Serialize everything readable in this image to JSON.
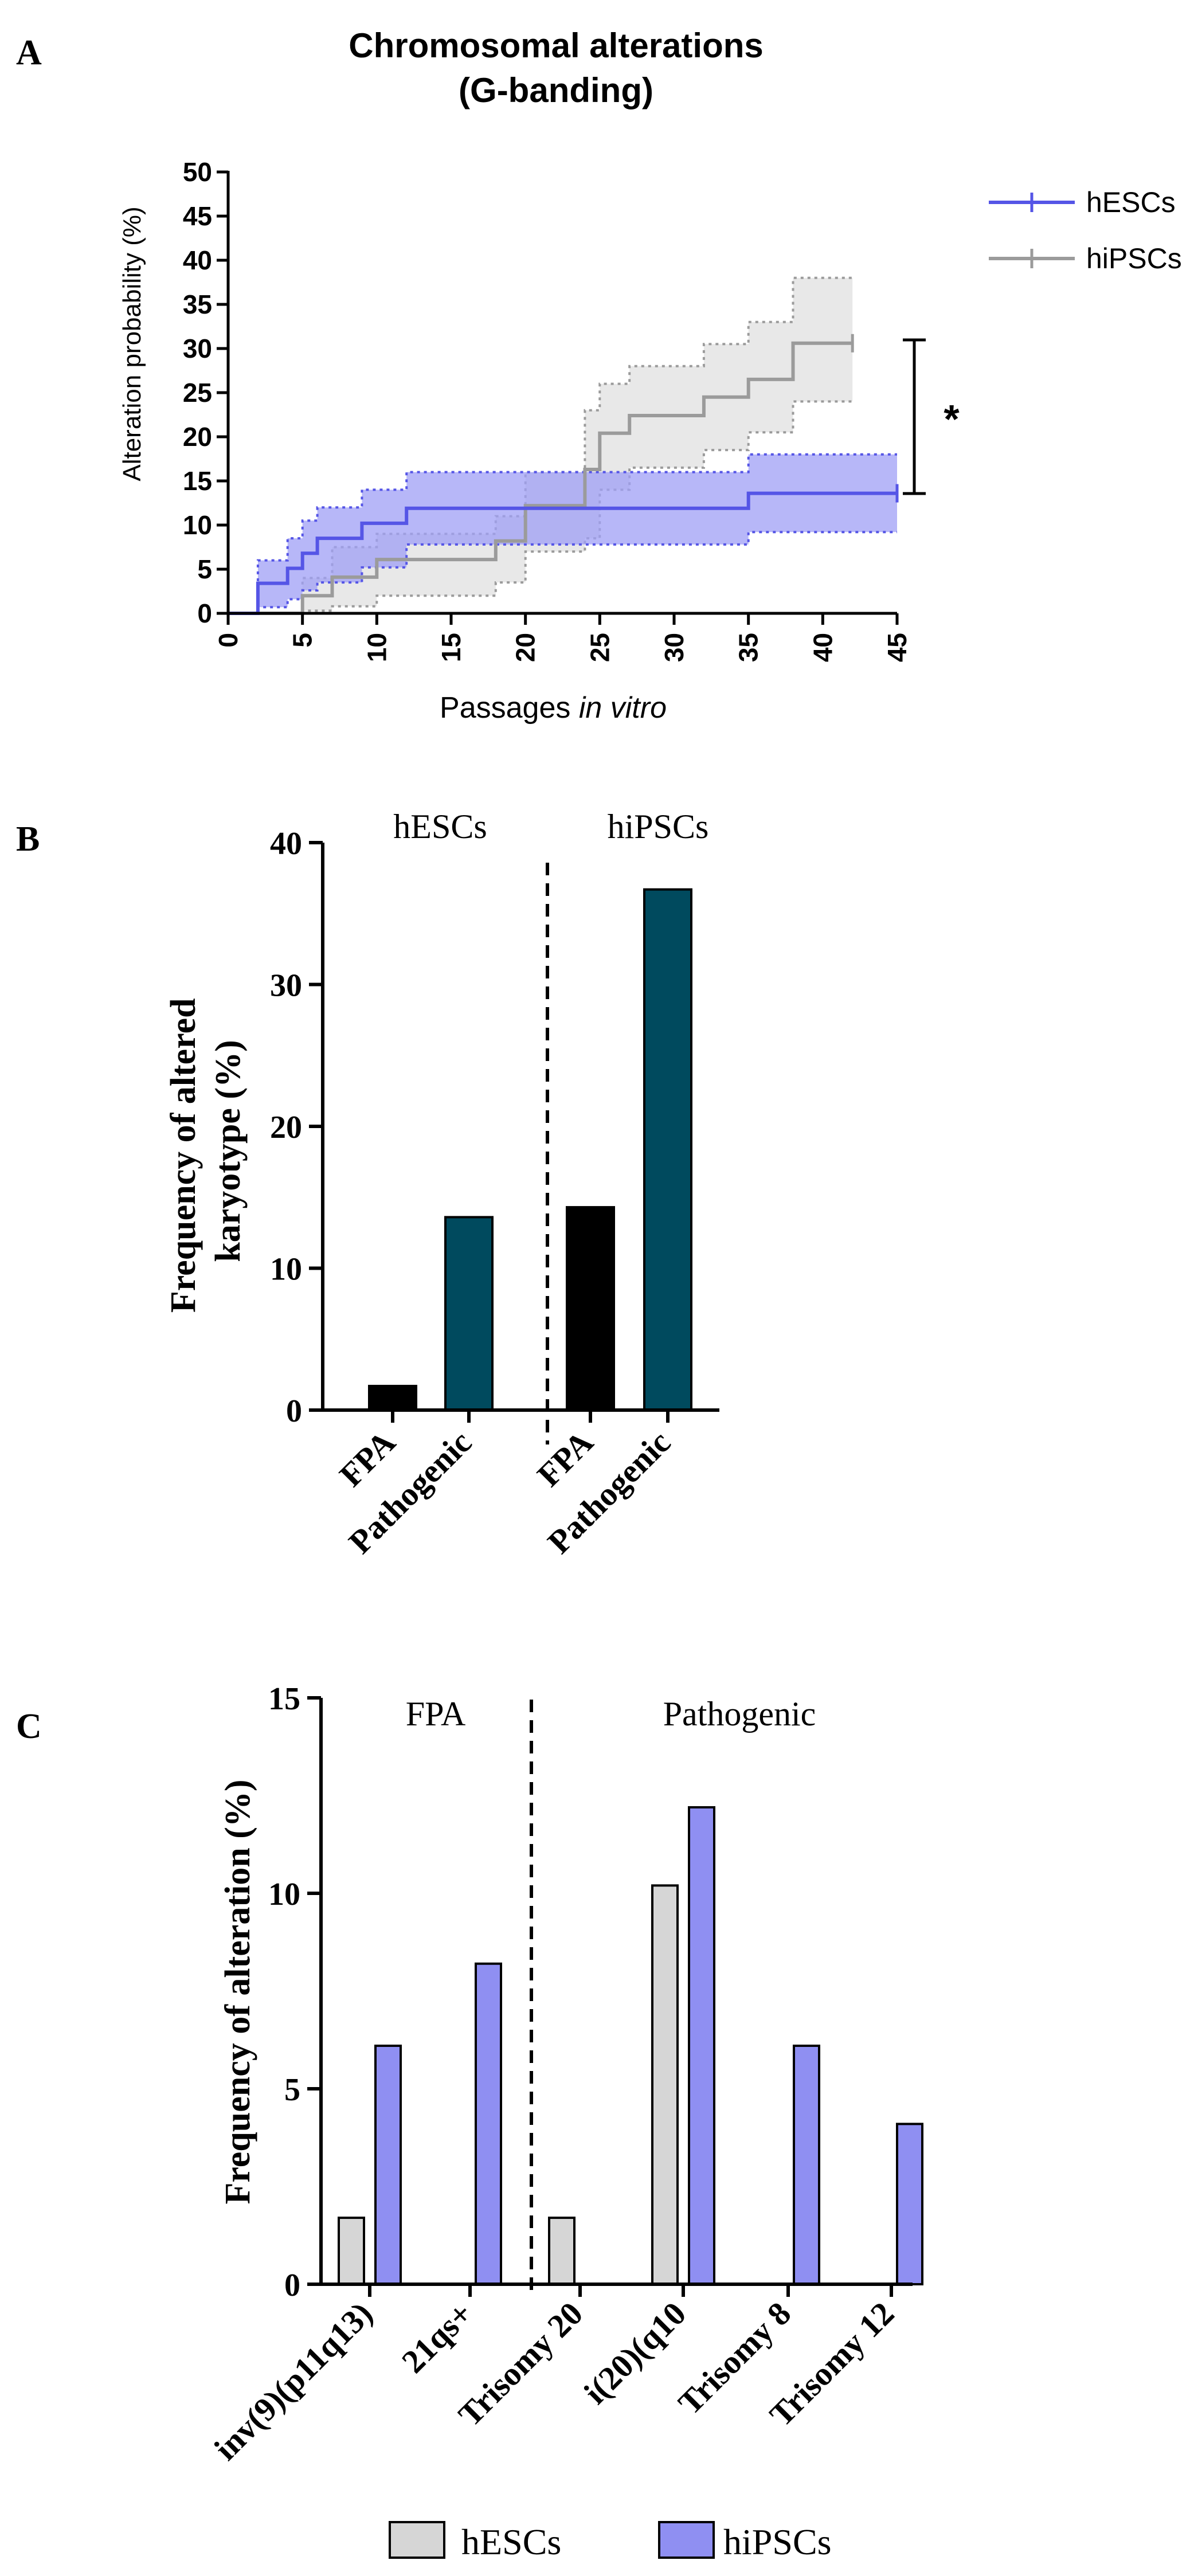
{
  "colors": {
    "hesc_blue": "#5555e6",
    "hesc_fill": "#9f9ff5",
    "hipsc_gray": "#9b9b9b",
    "hipsc_fill": "#e4e4e4",
    "bar_black": "#000000",
    "bar_teal": "#004a5e",
    "bar_lightgray": "#d6d6d6",
    "bar_purple": "#8f8ff2"
  },
  "chart_data": [
    {
      "id": "A",
      "type": "line",
      "panel_label": "A",
      "title": "Chromosomal alterations",
      "subtitle": "(G-banding)",
      "xlabel_prefix": "Passages ",
      "xlabel_italic": "in vitro",
      "ylabel": "Alteration probability (%)",
      "xlim": [
        0,
        45
      ],
      "ylim": [
        0,
        50
      ],
      "xticks": [
        "0",
        "5",
        "10",
        "15",
        "20",
        "25",
        "30",
        "35",
        "40",
        "45"
      ],
      "yticks": [
        "0",
        "5",
        "10",
        "15",
        "20",
        "25",
        "30",
        "35",
        "40",
        "45",
        "50"
      ],
      "significance": "*",
      "series": [
        {
          "name": "hESCs",
          "steps": [
            [
              0,
              0
            ],
            [
              2,
              3.4
            ],
            [
              4,
              5.1
            ],
            [
              5,
              6.8
            ],
            [
              6,
              8.5
            ],
            [
              9,
              10.2
            ],
            [
              12,
              11.9
            ],
            [
              35,
              13.6
            ],
            [
              45,
              13.6
            ]
          ],
          "lower": [
            [
              0,
              0
            ],
            [
              2,
              0.7
            ],
            [
              4,
              1.6
            ],
            [
              5,
              2.6
            ],
            [
              6,
              3.5
            ],
            [
              9,
              5.2
            ],
            [
              12,
              7.8
            ],
            [
              35,
              9.2
            ],
            [
              45,
              9.2
            ]
          ],
          "upper": [
            [
              0,
              0
            ],
            [
              2,
              6.0
            ],
            [
              4,
              8.5
            ],
            [
              5,
              10.5
            ],
            [
              6,
              12.0
            ],
            [
              9,
              14.0
            ],
            [
              12,
              16.0
            ],
            [
              35,
              18.0
            ],
            [
              45,
              18.0
            ]
          ]
        },
        {
          "name": "hiPSCs",
          "steps": [
            [
              0,
              0
            ],
            [
              5,
              2.0
            ],
            [
              7,
              4.1
            ],
            [
              10,
              6.1
            ],
            [
              18,
              8.2
            ],
            [
              20,
              12.2
            ],
            [
              24,
              16.3
            ],
            [
              25,
              20.4
            ],
            [
              27,
              22.4
            ],
            [
              32,
              24.5
            ],
            [
              35,
              26.5
            ],
            [
              38,
              30.6
            ],
            [
              42,
              30.6
            ]
          ],
          "lower": [
            [
              0,
              0
            ],
            [
              5,
              0.3
            ],
            [
              7,
              0.8
            ],
            [
              10,
              2.0
            ],
            [
              18,
              3.5
            ],
            [
              20,
              7.0
            ],
            [
              24,
              8.5
            ],
            [
              25,
              14.0
            ],
            [
              27,
              16.5
            ],
            [
              32,
              18.5
            ],
            [
              35,
              20.5
            ],
            [
              38,
              24.0
            ],
            [
              42,
              24.0
            ]
          ],
          "upper": [
            [
              0,
              0
            ],
            [
              5,
              4.0
            ],
            [
              7,
              7.5
            ],
            [
              10,
              9.0
            ],
            [
              18,
              11.0
            ],
            [
              20,
              16.0
            ],
            [
              24,
              23.0
            ],
            [
              25,
              26.0
            ],
            [
              27,
              28.0
            ],
            [
              32,
              30.5
            ],
            [
              35,
              33.0
            ],
            [
              38,
              38.0
            ],
            [
              42,
              38.0
            ]
          ]
        }
      ]
    },
    {
      "id": "B",
      "type": "bar",
      "panel_label": "B",
      "ylabel_line1": "Frequency of altered",
      "ylabel_line2": "karyotype (%)",
      "ylim": [
        0,
        40
      ],
      "yticks": [
        "0",
        "10",
        "20",
        "30",
        "40"
      ],
      "groups": [
        "hESCs",
        "hiPSCs"
      ],
      "categories": [
        "FPA",
        "Pathogenic",
        "FPA",
        "Pathogenic"
      ],
      "values": [
        1.7,
        13.6,
        14.3,
        36.7
      ]
    },
    {
      "id": "C",
      "type": "bar",
      "panel_label": "C",
      "ylabel": "Frequency of alteration (%)",
      "ylim": [
        0,
        15
      ],
      "yticks": [
        "0",
        "5",
        "10",
        "15"
      ],
      "groups": [
        "FPA",
        "Pathogenic"
      ],
      "categories": [
        "inv(9)(p11q13)",
        "21qs+",
        "Trisomy 20",
        "i(20)(q10",
        "Trisomy 8",
        "Trisomy 12"
      ],
      "series": [
        {
          "name": "hESCs",
          "values": [
            1.7,
            0,
            1.7,
            10.2,
            0,
            0
          ]
        },
        {
          "name": "hiPSCs",
          "values": [
            6.1,
            8.2,
            0,
            12.2,
            6.1,
            4.1
          ]
        }
      ]
    }
  ]
}
